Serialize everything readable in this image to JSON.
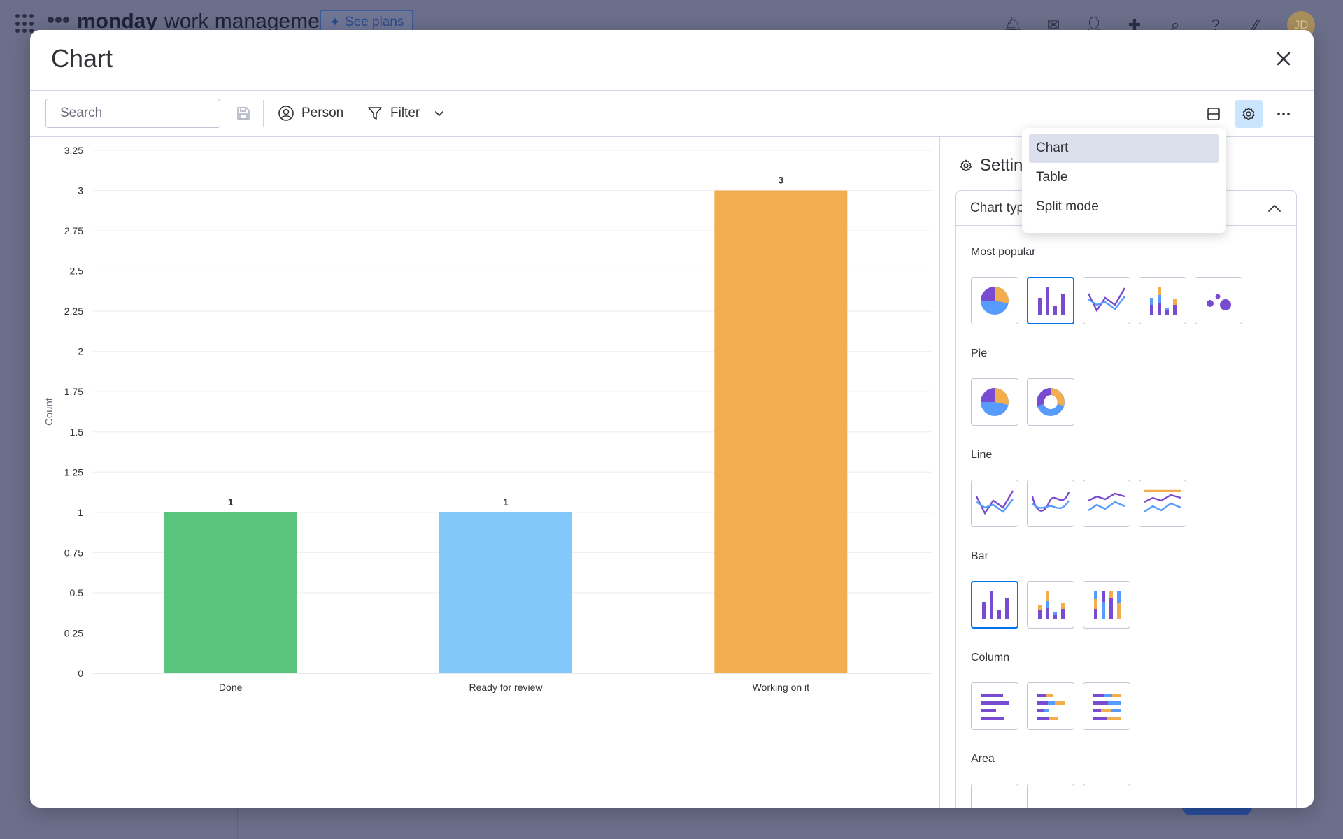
{
  "background": {
    "brand_bold": "monday",
    "brand_light": "work management",
    "plans_label": "See plans",
    "avatar_initials": "JD"
  },
  "modal": {
    "title": "Chart",
    "search": {
      "placeholder": "Search",
      "value": ""
    },
    "person_label": "Person",
    "filter_label": "Filter"
  },
  "view_menu": {
    "items": [
      {
        "label": "Chart",
        "active": true
      },
      {
        "label": "Table",
        "active": false
      },
      {
        "label": "Split mode",
        "active": false
      }
    ]
  },
  "settings": {
    "title": "Settings",
    "card_title": "Chart type",
    "sections": {
      "most_popular": "Most popular",
      "pie": "Pie",
      "line": "Line",
      "bar": "Bar",
      "column": "Column",
      "area": "Area"
    },
    "selected_type": "bar"
  },
  "colors": {
    "accent": "#0073ea",
    "done": "#5ac47d",
    "ready_for_review": "#82c8f9",
    "working_on_it": "#f2ad4e",
    "purple": "#784bd1",
    "blue": "#579bfc",
    "orange": "#f2ad4e"
  },
  "chart_data": {
    "type": "bar",
    "categories": [
      "Done",
      "Ready for review",
      "Working on it"
    ],
    "values": [
      1,
      1,
      3
    ],
    "data_labels": [
      "1",
      "1",
      "3"
    ],
    "bar_colors": [
      "#5ac47d",
      "#82c8f9",
      "#f2ad4e"
    ],
    "title": "",
    "xlabel": "",
    "ylabel": "Count",
    "ylim": [
      0,
      3.25
    ],
    "yticks": [
      "0",
      "0.25",
      "0.5",
      "0.75",
      "1",
      "1.25",
      "1.5",
      "1.75",
      "2",
      "2.25",
      "2.5",
      "2.75",
      "3",
      "3.25"
    ],
    "grid": true,
    "legend": "none"
  }
}
